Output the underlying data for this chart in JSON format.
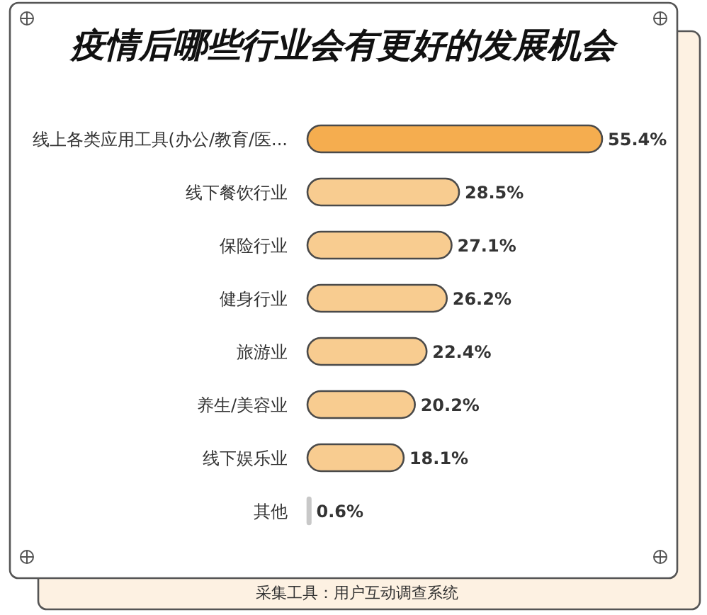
{
  "chart_data": {
    "type": "bar",
    "orientation": "horizontal",
    "title": "疫情后哪些行业会有更好的发展机会",
    "categories": [
      "线上各类应用工具(办公/教育/医...",
      "线下餐饮行业",
      "保险行业",
      "健身行业",
      "旅游业",
      "养生/美容业",
      "线下娱乐业",
      "其他"
    ],
    "values": [
      55.4,
      28.5,
      27.1,
      26.2,
      22.4,
      20.2,
      18.1,
      0.6
    ],
    "colors": [
      "#f5ad4f",
      "#f8cc90",
      "#f8cc90",
      "#f8cc90",
      "#f8cc90",
      "#f8cc90",
      "#f8cc90",
      "#c8c8c8"
    ],
    "value_labels": [
      "55.4%",
      "28.5%",
      "27.1%",
      "26.2%",
      "22.4%",
      "20.2%",
      "18.1%",
      "0.6%"
    ],
    "annotations": [
      "采集工具：用户互动调查系统"
    ]
  }
}
